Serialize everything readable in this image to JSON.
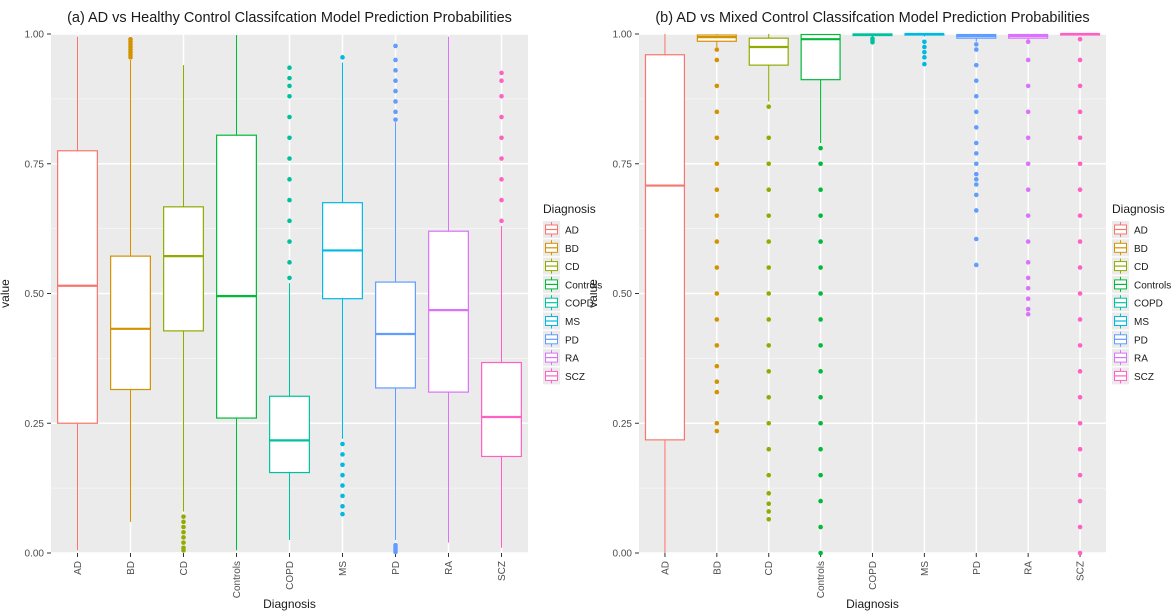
{
  "chart_data": [
    {
      "type": "box",
      "title": "(a) AD vs Healthy Control Classifcation Model Prediction Probabilities",
      "xlabel": "Diagnosis",
      "ylabel": "value",
      "ylim": [
        0,
        1
      ],
      "yticks": [
        "0.00",
        "0.25",
        "0.50",
        "0.75",
        "1.00"
      ],
      "grid": true,
      "legend_title": "Diagnosis",
      "legend_position": "right",
      "categories": [
        "AD",
        "BD",
        "CD",
        "Controls",
        "COPD",
        "MS",
        "PD",
        "RA",
        "SCZ"
      ],
      "colors": [
        "#F8766D",
        "#D39200",
        "#93AA00",
        "#00BA38",
        "#00C19F",
        "#00B9E3",
        "#619CFF",
        "#DB72FB",
        "#FF61C3"
      ],
      "boxes": [
        {
          "whisker_low": 0.005,
          "q1": 0.25,
          "median": 0.515,
          "q3": 0.775,
          "whisker_high": 0.995,
          "outliers_low": [],
          "outliers_high": []
        },
        {
          "whisker_low": 0.06,
          "q1": 0.315,
          "median": 0.432,
          "q3": 0.572,
          "whisker_high": 0.95,
          "outliers_low": [],
          "outliers_high": [
            0.955,
            0.96,
            0.965,
            0.97,
            0.975,
            0.98,
            0.985,
            0.99
          ]
        },
        {
          "whisker_low": 0.08,
          "q1": 0.428,
          "median": 0.572,
          "q3": 0.667,
          "whisker_high": 0.94,
          "outliers_low": [
            0.005,
            0.01,
            0.02,
            0.03,
            0.04,
            0.05,
            0.06,
            0.07
          ],
          "outliers_high": []
        },
        {
          "whisker_low": 0.005,
          "q1": 0.26,
          "median": 0.495,
          "q3": 0.805,
          "whisker_high": 0.998,
          "outliers_low": [],
          "outliers_high": []
        },
        {
          "whisker_low": 0.025,
          "q1": 0.155,
          "median": 0.217,
          "q3": 0.302,
          "whisker_high": 0.52,
          "outliers_low": [],
          "outliers_high": [
            0.53,
            0.56,
            0.6,
            0.64,
            0.68,
            0.72,
            0.76,
            0.8,
            0.84,
            0.88,
            0.9,
            0.915,
            0.935
          ]
        },
        {
          "whisker_low": 0.22,
          "q1": 0.49,
          "median": 0.583,
          "q3": 0.675,
          "whisker_high": 0.945,
          "outliers_low": [
            0.075,
            0.09,
            0.11,
            0.13,
            0.15,
            0.17,
            0.19,
            0.21
          ],
          "outliers_high": [
            0.955
          ]
        },
        {
          "whisker_low": 0.025,
          "q1": 0.318,
          "median": 0.422,
          "q3": 0.522,
          "whisker_high": 0.83,
          "outliers_low": [
            0.002,
            0.006,
            0.01,
            0.015
          ],
          "outliers_high": [
            0.835,
            0.85,
            0.87,
            0.89,
            0.91,
            0.93,
            0.95,
            0.977
          ]
        },
        {
          "whisker_low": 0.02,
          "q1": 0.31,
          "median": 0.468,
          "q3": 0.62,
          "whisker_high": 0.995,
          "outliers_low": [],
          "outliers_high": []
        },
        {
          "whisker_low": 0.01,
          "q1": 0.186,
          "median": 0.262,
          "q3": 0.367,
          "whisker_high": 0.63,
          "outliers_low": [],
          "outliers_high": [
            0.64,
            0.68,
            0.72,
            0.76,
            0.8,
            0.84,
            0.88,
            0.91,
            0.925
          ]
        }
      ]
    },
    {
      "type": "box",
      "title": "(b) AD vs Mixed Control Classifcation Model Prediction Probabilities",
      "xlabel": "Diagnosis",
      "ylabel": "value",
      "ylim": [
        0,
        1
      ],
      "yticks": [
        "0.00",
        "0.25",
        "0.50",
        "0.75",
        "1.00"
      ],
      "grid": true,
      "legend_title": "Diagnosis",
      "legend_position": "right",
      "categories": [
        "AD",
        "BD",
        "CD",
        "Controls",
        "COPD",
        "MS",
        "PD",
        "RA",
        "SCZ"
      ],
      "colors": [
        "#F8766D",
        "#D39200",
        "#93AA00",
        "#00BA38",
        "#00C19F",
        "#00B9E3",
        "#619CFF",
        "#DB72FB",
        "#FF61C3"
      ],
      "boxes": [
        {
          "whisker_low": 0.0,
          "q1": 0.218,
          "median": 0.708,
          "q3": 0.96,
          "whisker_high": 1.0,
          "outliers_low": [],
          "outliers_high": []
        },
        {
          "whisker_low": 0.975,
          "q1": 0.986,
          "median": 0.994,
          "q3": 0.998,
          "whisker_high": 1.0,
          "outliers_low": [
            0.235,
            0.25,
            0.31,
            0.33,
            0.36,
            0.4,
            0.45,
            0.5,
            0.55,
            0.6,
            0.65,
            0.7,
            0.75,
            0.8,
            0.85,
            0.9,
            0.95,
            0.97
          ],
          "outliers_high": []
        },
        {
          "whisker_low": 0.87,
          "q1": 0.94,
          "median": 0.975,
          "q3": 0.992,
          "whisker_high": 1.0,
          "outliers_low": [
            0.065,
            0.08,
            0.095,
            0.115,
            0.15,
            0.2,
            0.25,
            0.3,
            0.35,
            0.4,
            0.45,
            0.5,
            0.55,
            0.6,
            0.65,
            0.7,
            0.75,
            0.8,
            0.86
          ],
          "outliers_high": []
        },
        {
          "whisker_low": 0.79,
          "q1": 0.912,
          "median": 0.99,
          "q3": 0.999,
          "whisker_high": 1.0,
          "outliers_low": [
            0.0,
            0.05,
            0.1,
            0.15,
            0.2,
            0.25,
            0.3,
            0.35,
            0.4,
            0.45,
            0.5,
            0.55,
            0.6,
            0.65,
            0.7,
            0.75,
            0.78
          ],
          "outliers_high": []
        },
        {
          "whisker_low": 0.993,
          "q1": 0.997,
          "median": 0.999,
          "q3": 1.0,
          "whisker_high": 1.0,
          "outliers_low": [
            0.984,
            0.988,
            0.991
          ],
          "outliers_high": []
        },
        {
          "whisker_low": 0.995,
          "q1": 0.998,
          "median": 1.0,
          "q3": 1.0,
          "whisker_high": 1.0,
          "outliers_low": [
            0.942,
            0.955,
            0.965,
            0.975,
            0.985
          ],
          "outliers_high": []
        },
        {
          "whisker_low": 0.985,
          "q1": 0.992,
          "median": 0.996,
          "q3": 0.999,
          "whisker_high": 1.0,
          "outliers_low": [
            0.555,
            0.605,
            0.66,
            0.69,
            0.71,
            0.72,
            0.73,
            0.75,
            0.77,
            0.79,
            0.82,
            0.85,
            0.88,
            0.91,
            0.94,
            0.97,
            0.98
          ],
          "outliers_high": []
        },
        {
          "whisker_low": 0.988,
          "q1": 0.992,
          "median": 0.996,
          "q3": 0.999,
          "whisker_high": 1.0,
          "outliers_low": [
            0.46,
            0.47,
            0.49,
            0.51,
            0.53,
            0.56,
            0.6,
            0.65,
            0.7,
            0.75,
            0.8,
            0.85,
            0.9,
            0.95,
            0.985
          ],
          "outliers_high": []
        },
        {
          "whisker_low": 0.998,
          "q1": 0.999,
          "median": 1.0,
          "q3": 1.0,
          "whisker_high": 1.0,
          "outliers_low": [
            0.0,
            0.05,
            0.1,
            0.15,
            0.2,
            0.25,
            0.3,
            0.35,
            0.4,
            0.45,
            0.5,
            0.55,
            0.6,
            0.65,
            0.7,
            0.75,
            0.8,
            0.85,
            0.9,
            0.95,
            0.99
          ],
          "outliers_high": []
        }
      ]
    }
  ]
}
